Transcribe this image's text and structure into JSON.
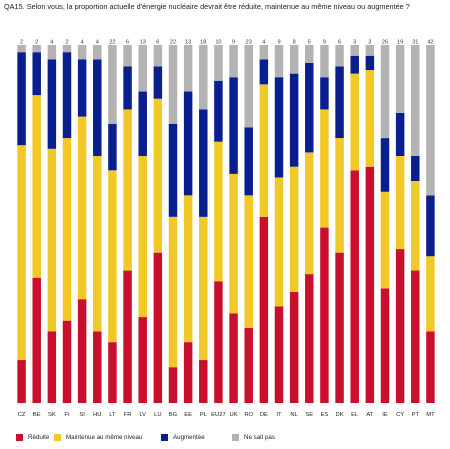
{
  "chart_data": {
    "type": "bar",
    "stacked": true,
    "orientation": "vertical",
    "title": "QA15. Selon vous, la proportion actuelle d'énergie nucléaire devrait être réduite, maintenue au même niveau ou augmentée ?",
    "categories": [
      "CZ",
      "BE",
      "SK",
      "FI",
      "SI",
      "HU",
      "LT",
      "FR",
      "LV",
      "LU",
      "BG",
      "EE",
      "PL",
      "EU27",
      "UK",
      "RO",
      "DE",
      "IT",
      "NL",
      "SE",
      "ES",
      "DK",
      "EL",
      "AT",
      "IE",
      "CY",
      "PT",
      "MT"
    ],
    "series": [
      {
        "name": "Réduite",
        "color": "#c8102e",
        "values": [
          12,
          35,
          20,
          23,
          29,
          20,
          17,
          37,
          24,
          42,
          10,
          17,
          12,
          34,
          25,
          21,
          52,
          27,
          31,
          36,
          49,
          42,
          65,
          66,
          32,
          43,
          37,
          20
        ]
      },
      {
        "name": "Maintenue au même niveau",
        "color": "#f0c929",
        "values": [
          60,
          51,
          51,
          51,
          51,
          49,
          48,
          45,
          45,
          43,
          42,
          41,
          40,
          39,
          39,
          37,
          37,
          36,
          35,
          34,
          33,
          32,
          27,
          27,
          27,
          26,
          25,
          21
        ]
      },
      {
        "name": "Augmentée",
        "color": "#0a1f8f",
        "values": [
          26,
          12,
          25,
          24,
          16,
          27,
          13,
          12,
          18,
          9,
          26,
          29,
          30,
          17,
          27,
          19,
          7,
          28,
          26,
          25,
          9,
          20,
          5,
          4,
          15,
          12,
          7,
          17
        ]
      },
      {
        "name": "Ne sait pas",
        "color": "#b3b3b3",
        "values": [
          2,
          2,
          4,
          2,
          4,
          4,
          22,
          6,
          13,
          6,
          22,
          13,
          18,
          10,
          9,
          23,
          4,
          9,
          8,
          5,
          9,
          6,
          3,
          3,
          26,
          19,
          31,
          42
        ]
      }
    ],
    "ylim": [
      0,
      100
    ],
    "legend_position": "bottom"
  }
}
